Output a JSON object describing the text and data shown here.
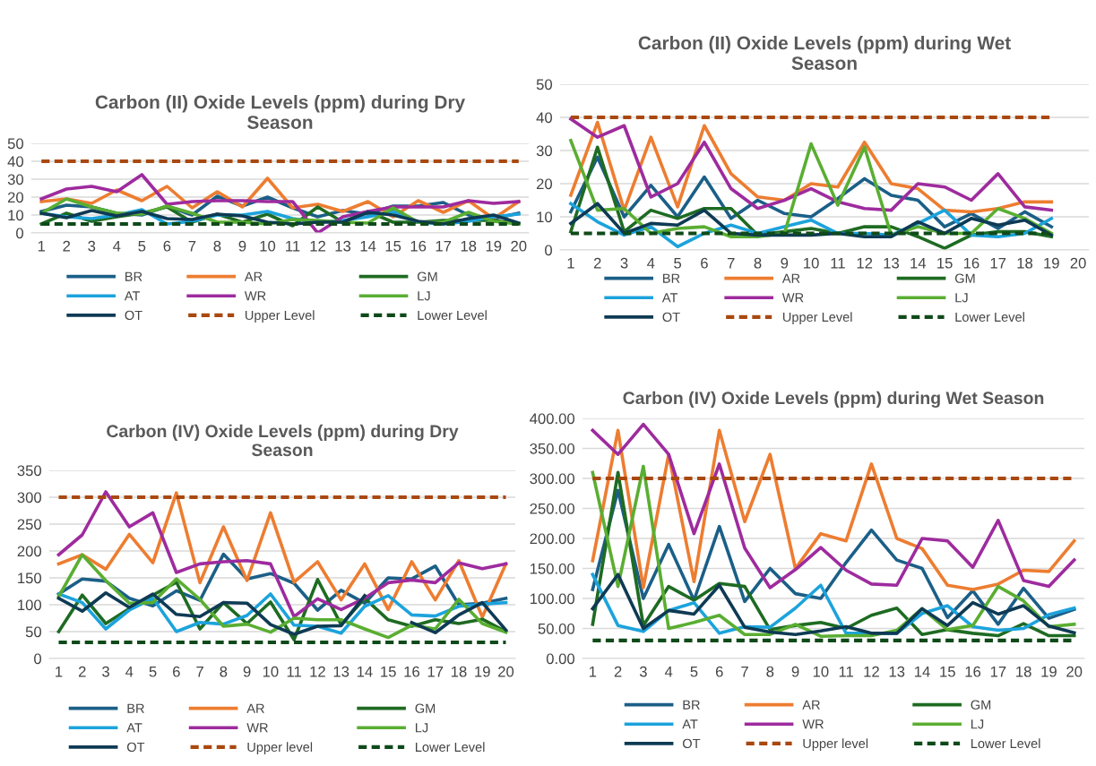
{
  "chart_data": [
    {
      "type": "line",
      "title": "Carbon (II) Oxide Levels (ppm) during Dry Season",
      "categories": [
        "1",
        "2",
        "3",
        "4",
        "5",
        "6",
        "7",
        "8",
        "9",
        "10",
        "11",
        "12",
        "13",
        "14",
        "15",
        "16",
        "17",
        "18",
        "19",
        "20"
      ],
      "ylim": [
        0,
        50
      ],
      "yticks": [
        0,
        10,
        20,
        30,
        40,
        50
      ],
      "grid": "y",
      "legend": "bottom",
      "marker": "none",
      "series": [
        {
          "name": "BR",
          "color": "#1b5f87",
          "values": [
            12,
            15.5,
            14.5,
            11,
            10,
            15,
            10,
            20.5,
            15,
            20,
            14,
            9,
            12.5,
            10.5,
            15,
            15,
            17,
            10,
            8,
            11
          ]
        },
        {
          "name": "AR",
          "color": "#ed7d31",
          "values": [
            17.5,
            19,
            16.5,
            24,
            18,
            26,
            14,
            23,
            14.5,
            30.5,
            14,
            16,
            12,
            17.5,
            9,
            18,
            11.5,
            18,
            8,
            17.5
          ]
        },
        {
          "name": "GM",
          "color": "#1e6b22",
          "values": [
            5,
            11,
            6.5,
            9,
            11,
            14.5,
            6,
            10.5,
            6,
            10.5,
            4,
            14.5,
            6,
            12,
            6,
            6,
            7,
            7,
            7,
            5
          ]
        },
        {
          "name": "AT",
          "color": "#1ca3dc",
          "values": [
            11,
            9,
            8,
            10,
            13,
            5,
            6.5,
            10,
            10,
            12,
            8,
            6,
            7,
            9,
            12,
            6,
            5,
            6.5,
            9,
            10.5
          ]
        },
        {
          "name": "WR",
          "color": "#9e2b9e",
          "values": [
            19,
            24.5,
            26,
            23,
            32.5,
            16,
            17.5,
            18,
            18,
            17.5,
            17.5,
            0,
            9,
            12,
            14.5,
            14.5,
            14.5,
            18,
            16.5,
            17.5
          ]
        },
        {
          "name": "LJ",
          "color": "#5aae32",
          "values": [
            11,
            19,
            14.5,
            11,
            10.5,
            15,
            11,
            6,
            6,
            5,
            7.5,
            7,
            6,
            5.5,
            14,
            6,
            6,
            11.5,
            6.5,
            5
          ]
        },
        {
          "name": "OT",
          "color": "#0e3a54",
          "values": [
            11,
            8.5,
            12.5,
            9.5,
            12,
            8,
            7.5,
            10.5,
            9.5,
            6,
            5,
            6,
            6,
            11.5,
            10,
            6.5,
            5,
            8,
            10,
            5.5
          ]
        },
        {
          "name": "Upper Level",
          "color": "#a9480f",
          "line_style": "dashed",
          "values": [
            40,
            40,
            40,
            40,
            40,
            40,
            40,
            40,
            40,
            40,
            40,
            40,
            40,
            40,
            40,
            40,
            40,
            40,
            40,
            40
          ]
        },
        {
          "name": "Lower Level",
          "color": "#0f4a1a",
          "line_style": "dashed",
          "values": [
            5,
            5,
            5,
            5,
            5,
            5,
            5,
            5,
            5,
            5,
            5,
            5,
            5,
            5,
            5,
            5,
            5,
            5,
            5,
            5
          ]
        }
      ]
    },
    {
      "type": "line",
      "title": "Carbon (II) Oxide Levels (ppm) during Wet Season",
      "categories": [
        "1",
        "2",
        "3",
        "4",
        "5",
        "6",
        "7",
        "8",
        "9",
        "10",
        "11",
        "12",
        "13",
        "14",
        "15",
        "16",
        "17",
        "18",
        "19",
        "20"
      ],
      "ylim": [
        0,
        50
      ],
      "yticks": [
        0,
        10,
        20,
        30,
        40,
        50
      ],
      "grid": "y",
      "legend": "bottom",
      "marker": "none",
      "series": [
        {
          "name": "BR",
          "color": "#1b5f87",
          "values": [
            11.5,
            28,
            10,
            19.5,
            10,
            22,
            9.5,
            15,
            11,
            10,
            15.5,
            21.5,
            16.5,
            15,
            7,
            11,
            6.5,
            11.5,
            7,
            null
          ]
        },
        {
          "name": "AR",
          "color": "#ed7d31",
          "values": [
            16.5,
            38.5,
            12,
            34,
            13,
            37.5,
            23,
            16,
            15,
            20,
            19,
            32.5,
            20,
            18.5,
            12,
            11.5,
            12.5,
            14.5,
            14.5,
            null
          ]
        },
        {
          "name": "GM",
          "color": "#1e6b22",
          "values": [
            5.5,
            31,
            5.5,
            12,
            9.5,
            12.5,
            12.5,
            4.5,
            5.5,
            6.5,
            5,
            7,
            7,
            4,
            0.5,
            4.5,
            5.5,
            5.5,
            4,
            null
          ]
        },
        {
          "name": "AT",
          "color": "#1ca3dc",
          "values": [
            14,
            8.5,
            4.5,
            7,
            1,
            5,
            7.5,
            5,
            7,
            9,
            5,
            5,
            4.5,
            8,
            12,
            4.5,
            4,
            5,
            9.5,
            null
          ]
        },
        {
          "name": "WR",
          "color": "#9e2b9e",
          "values": [
            39.5,
            34,
            37.5,
            16,
            20,
            32.5,
            18.5,
            12.5,
            15,
            18.5,
            14.5,
            12.5,
            12,
            20,
            19,
            15,
            23,
            13,
            12,
            null
          ]
        },
        {
          "name": "LJ",
          "color": "#5aae32",
          "values": [
            33,
            12,
            12.5,
            5,
            6.5,
            7,
            4,
            4,
            5,
            32,
            13.5,
            31,
            4.5,
            7,
            5,
            5,
            12.5,
            9.5,
            5,
            null
          ]
        },
        {
          "name": "OT",
          "color": "#0e3a54",
          "values": [
            8,
            14,
            5,
            8,
            7.5,
            12,
            5,
            4.5,
            4.5,
            4.5,
            5,
            4,
            4,
            8.5,
            5,
            9.5,
            7.5,
            9,
            4.5,
            null
          ]
        },
        {
          "name": "Upper Level",
          "color": "#a9480f",
          "line_style": "dashed",
          "values": [
            40,
            40,
            40,
            40,
            40,
            40,
            40,
            40,
            40,
            40,
            40,
            40,
            40,
            40,
            40,
            40,
            40,
            40,
            40,
            null
          ]
        },
        {
          "name": "Lower Level",
          "color": "#0f4a1a",
          "line_style": "dashed",
          "values": [
            5,
            5,
            5,
            5,
            5,
            5,
            5,
            5,
            5,
            5,
            5,
            5,
            5,
            5,
            5,
            5,
            5,
            5,
            5,
            null
          ]
        }
      ]
    },
    {
      "type": "line",
      "title": "Carbon (IV) Oxide Levels (ppm) during Dry Season",
      "categories": [
        "1",
        "2",
        "3",
        "4",
        "5",
        "6",
        "7",
        "8",
        "9",
        "10",
        "11",
        "12",
        "13",
        "14",
        "15",
        "16",
        "17",
        "18",
        "19",
        "20"
      ],
      "ylim": [
        0,
        350
      ],
      "yticks": [
        0,
        50,
        100,
        150,
        200,
        250,
        300,
        350
      ],
      "grid": "y",
      "legend": "bottom",
      "marker": "none",
      "series": [
        {
          "name": "BR",
          "color": "#1b5f87",
          "values": [
            120,
            148,
            144,
            112,
            98,
            126,
            108,
            194,
            148,
            158,
            140,
            90,
            127,
            103,
            150,
            148,
            172,
            100,
            103,
            112
          ]
        },
        {
          "name": "AR",
          "color": "#ed7d31",
          "values": [
            176,
            193,
            166,
            231,
            178,
            308,
            141,
            245,
            145,
            271,
            142,
            180,
            109,
            176,
            91,
            180,
            109,
            182,
            77,
            176
          ]
        },
        {
          "name": "GM",
          "color": "#1e6b22",
          "values": [
            50,
            118,
            65,
            93,
            118,
            142,
            55,
            104,
            65,
            105,
            35,
            147,
            63,
            112,
            72,
            60,
            72,
            65,
            73,
            50
          ]
        },
        {
          "name": "AT",
          "color": "#1ca3dc",
          "values": [
            120,
            104,
            55,
            90,
            112,
            50,
            67,
            64,
            80,
            120,
            62,
            60,
            47,
            97,
            117,
            81,
            79,
            97,
            101,
            104
          ]
        },
        {
          "name": "WR",
          "color": "#9e2b9e",
          "values": [
            193,
            230,
            310,
            245,
            271,
            160,
            176,
            180,
            182,
            176,
            78,
            111,
            91,
            112,
            141,
            146,
            141,
            178,
            167,
            176
          ]
        },
        {
          "name": "LJ",
          "color": "#5aae32",
          "values": [
            115,
            193,
            145,
            103,
            104,
            148,
            110,
            60,
            64,
            49,
            75,
            72,
            72,
            55,
            39,
            62,
            55,
            110,
            65,
            49
          ]
        },
        {
          "name": "OT",
          "color": "#0e3a54",
          "values": [
            112,
            88,
            122,
            95,
            120,
            82,
            78,
            104,
            103,
            63,
            45,
            60,
            61,
            117,
            null,
            67,
            48,
            81,
            104,
            53
          ]
        },
        {
          "name": "Upper level",
          "color": "#a9480f",
          "line_style": "dashed",
          "values": [
            300,
            300,
            300,
            300,
            300,
            300,
            300,
            300,
            300,
            300,
            300,
            300,
            300,
            300,
            300,
            300,
            300,
            300,
            300,
            300
          ]
        },
        {
          "name": "Lower Level",
          "color": "#0f4a1a",
          "line_style": "dashed",
          "values": [
            30,
            30,
            30,
            30,
            30,
            30,
            30,
            30,
            30,
            30,
            30,
            30,
            30,
            30,
            30,
            30,
            30,
            30,
            30,
            30
          ]
        }
      ]
    },
    {
      "type": "line",
      "title": "Carbon (IV) Oxide Levels (ppm) during Wet Season",
      "categories": [
        "1",
        "2",
        "3",
        "4",
        "5",
        "6",
        "7",
        "8",
        "9",
        "10",
        "11",
        "12",
        "13",
        "14",
        "15",
        "16",
        "17",
        "18",
        "19",
        "20"
      ],
      "ylim": [
        0,
        400
      ],
      "yticks": [
        {
          "value": 0,
          "label": "0.00"
        },
        {
          "value": 50,
          "label": "50.00"
        },
        {
          "value": 100,
          "label": "100.00"
        },
        {
          "value": 150,
          "label": "150.00"
        },
        {
          "value": 200,
          "label": "200.00"
        },
        {
          "value": 250,
          "label": "250.00"
        },
        {
          "value": 300,
          "label": "300.00"
        },
        {
          "value": 350,
          "label": "350.00"
        },
        {
          "value": 400,
          "label": "400.00"
        }
      ],
      "grid": "y",
      "legend": "bottom",
      "marker": "none",
      "series": [
        {
          "name": "BR",
          "color": "#1b5f87",
          "values": [
            115,
            280,
            100,
            190,
            97,
            220,
            95,
            150,
            108,
            100,
            160,
            214,
            164,
            150,
            68,
            113,
            57,
            117,
            67,
            82
          ]
        },
        {
          "name": "AR",
          "color": "#ed7d31",
          "values": [
            163,
            380,
            118,
            340,
            128,
            380,
            228,
            340,
            150,
            208,
            196,
            324,
            200,
            183,
            122,
            115,
            124,
            147,
            145,
            196
          ]
        },
        {
          "name": "GM",
          "color": "#1e6b22",
          "values": [
            57,
            310,
            55,
            120,
            97,
            125,
            120,
            48,
            55,
            60,
            50,
            72,
            84,
            40,
            48,
            42,
            38,
            58,
            38,
            38
          ]
        },
        {
          "name": "AT",
          "color": "#1ca3dc",
          "values": [
            140,
            55,
            45,
            80,
            93,
            42,
            53,
            52,
            84,
            122,
            42,
            42,
            42,
            75,
            88,
            53,
            47,
            50,
            73,
            84
          ]
        },
        {
          "name": "WR",
          "color": "#9e2b9e",
          "values": [
            380,
            340,
            390,
            340,
            208,
            324,
            184,
            118,
            148,
            185,
            147,
            124,
            122,
            200,
            196,
            152,
            230,
            130,
            120,
            164
          ]
        },
        {
          "name": "LJ",
          "color": "#5aae32",
          "values": [
            310,
            120,
            320,
            50,
            60,
            72,
            40,
            40,
            57,
            37,
            38,
            38,
            47,
            83,
            48,
            55,
            120,
            96,
            53,
            57
          ]
        },
        {
          "name": "OT",
          "color": "#0e3a54",
          "values": [
            83,
            140,
            50,
            80,
            74,
            122,
            52,
            44,
            40,
            46,
            53,
            42,
            42,
            83,
            55,
            93,
            74,
            88,
            54,
            43
          ]
        },
        {
          "name": "Upper level",
          "color": "#a9480f",
          "line_style": "dashed",
          "values": [
            300,
            300,
            300,
            300,
            300,
            300,
            300,
            300,
            300,
            300,
            300,
            300,
            300,
            300,
            300,
            300,
            300,
            300,
            300,
            300
          ]
        },
        {
          "name": "Lower Level",
          "color": "#0f4a1a",
          "line_style": "dashed",
          "values": [
            30,
            30,
            30,
            30,
            30,
            30,
            30,
            30,
            30,
            30,
            30,
            30,
            30,
            30,
            30,
            30,
            30,
            30,
            30,
            30
          ]
        }
      ]
    }
  ]
}
